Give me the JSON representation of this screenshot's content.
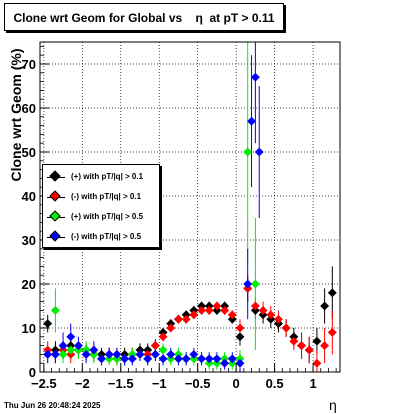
{
  "chart_data": {
    "type": "scatter",
    "title": "Clone wrt Geom for Global vs    η  at pT > 0.11",
    "xlabel": "η",
    "ylabel": "Clone wrt Geom (%)",
    "xlim": [
      -2.55,
      1.35
    ],
    "ylim": [
      0,
      75
    ],
    "xticks": [
      -2.5,
      -2,
      -1.5,
      -1,
      -0.5,
      0,
      0.5,
      1
    ],
    "xtick_labels": [
      "−2.5",
      "−2",
      "−1.5",
      "−1",
      "−0.5",
      "0",
      "0.5",
      "1"
    ],
    "yticks": [
      0,
      10,
      20,
      30,
      40,
      50,
      60,
      70
    ],
    "ytick_labels": [
      "0",
      "10",
      "20",
      "30",
      "40",
      "50",
      "60",
      "70"
    ],
    "grid": true,
    "legend_position": "middle-left",
    "timestamp": "Thu Jun 26 20:48:24 2025",
    "series": [
      {
        "name": "(+) with pT/|q| > 0.1",
        "color": "#000000",
        "x": [
          -2.45,
          -2.35,
          -2.25,
          -2.15,
          -2.05,
          -1.95,
          -1.85,
          -1.75,
          -1.65,
          -1.55,
          -1.45,
          -1.35,
          -1.25,
          -1.15,
          -1.05,
          -0.95,
          -0.85,
          -0.75,
          -0.65,
          -0.55,
          -0.45,
          -0.35,
          -0.25,
          -0.15,
          -0.05,
          0.05,
          0.15,
          0.25,
          0.35,
          0.45,
          0.55,
          0.65,
          0.75,
          0.85,
          0.95,
          1.05,
          1.15,
          1.25
        ],
        "y": [
          11,
          5,
          5,
          6,
          5,
          5,
          4,
          4,
          4,
          3,
          4,
          4,
          5,
          5,
          6,
          9,
          11,
          12,
          13,
          14,
          15,
          15,
          14,
          15,
          12,
          8,
          19,
          14,
          13,
          12,
          11,
          10,
          8,
          6,
          5,
          7,
          15,
          18
        ],
        "err": [
          2,
          2,
          2,
          2,
          2,
          1.5,
          1.5,
          1.5,
          1.5,
          1.5,
          1.5,
          1.5,
          1.5,
          1.5,
          1.5,
          1,
          1,
          1,
          1,
          1,
          1,
          1,
          1,
          1,
          1,
          2,
          3,
          2,
          2,
          2,
          2,
          2,
          2,
          3,
          3,
          3,
          4,
          6
        ]
      },
      {
        "name": "(-) with pT/|q| > 0.1",
        "color": "#ff0000",
        "x": [
          -2.45,
          -2.35,
          -2.25,
          -2.15,
          -2.05,
          -1.95,
          -1.85,
          -1.75,
          -1.65,
          -1.55,
          -1.45,
          -1.35,
          -1.25,
          -1.15,
          -1.05,
          -0.95,
          -0.85,
          -0.75,
          -0.65,
          -0.55,
          -0.45,
          -0.35,
          -0.25,
          -0.15,
          -0.05,
          0.05,
          0.15,
          0.25,
          0.35,
          0.45,
          0.55,
          0.65,
          0.75,
          0.85,
          0.95,
          1.05,
          1.15,
          1.25
        ],
        "y": [
          5,
          4,
          5,
          4,
          5,
          4,
          4,
          3,
          4,
          4,
          3,
          4,
          4,
          4,
          6,
          8,
          10,
          12,
          12,
          13,
          14,
          14,
          15,
          14,
          13,
          10,
          19,
          15,
          14,
          13,
          12,
          10,
          7,
          6,
          5,
          2,
          6,
          9
        ],
        "err": [
          2,
          2,
          2,
          2,
          2,
          1.5,
          1.5,
          1.5,
          1.5,
          1.5,
          1.5,
          1.5,
          1.5,
          1.5,
          1.5,
          1,
          1,
          1,
          1,
          1,
          1,
          1,
          1,
          1,
          1,
          2,
          3,
          2,
          2,
          2,
          2,
          2,
          2,
          3,
          3,
          3,
          4,
          5
        ]
      },
      {
        "name": "(+) with pT/|q| > 0.5",
        "color": "#00ee00",
        "x": [
          -2.45,
          -2.35,
          -2.25,
          -2.15,
          -2.05,
          -1.95,
          -1.85,
          -1.75,
          -1.65,
          -1.55,
          -1.45,
          -1.35,
          -1.25,
          -1.15,
          -1.05,
          -0.95,
          -0.85,
          -0.75,
          -0.65,
          -0.55,
          -0.45,
          -0.35,
          -0.25,
          -0.15,
          -0.05,
          0.05,
          0.15,
          0.25
        ],
        "y": [
          4,
          14,
          4,
          5,
          5,
          5,
          4,
          3,
          3,
          3,
          3,
          4,
          4,
          3,
          4,
          5,
          3,
          4,
          3,
          3,
          3,
          2,
          2,
          3,
          2,
          3,
          50,
          20
        ],
        "err": [
          2,
          5,
          2,
          2,
          2,
          2,
          2,
          1.5,
          1.5,
          1.5,
          1.5,
          1.5,
          1.5,
          1.5,
          1.5,
          1.5,
          1.5,
          1.5,
          1.5,
          1.5,
          1.5,
          1.5,
          1.5,
          1.5,
          1.5,
          2,
          25,
          15
        ]
      },
      {
        "name": "(-) with pT/|q| > 0.5",
        "color": "#0000ff",
        "x": [
          -2.45,
          -2.35,
          -2.25,
          -2.15,
          -2.05,
          -1.95,
          -1.85,
          -1.75,
          -1.65,
          -1.55,
          -1.45,
          -1.35,
          -1.25,
          -1.15,
          -1.05,
          -0.95,
          -0.85,
          -0.75,
          -0.65,
          -0.55,
          -0.45,
          -0.35,
          -0.25,
          -0.15,
          -0.05,
          0.05,
          0.15,
          0.2,
          0.25,
          0.3
        ],
        "y": [
          4,
          4,
          6,
          8,
          6,
          4,
          5,
          3,
          4,
          4,
          3,
          3,
          4,
          3,
          4,
          3,
          4,
          3,
          3,
          4,
          3,
          3,
          3,
          2,
          3,
          2,
          20,
          57,
          67,
          50
        ],
        "err": [
          2,
          2,
          3,
          3,
          2,
          2,
          2,
          1.5,
          1.5,
          1.5,
          1.5,
          1.5,
          1.5,
          1.5,
          1.5,
          1.5,
          1.5,
          1.5,
          1.5,
          1.5,
          1.5,
          1.5,
          1.5,
          1.5,
          1.5,
          2,
          8,
          15,
          15,
          15
        ]
      }
    ]
  }
}
